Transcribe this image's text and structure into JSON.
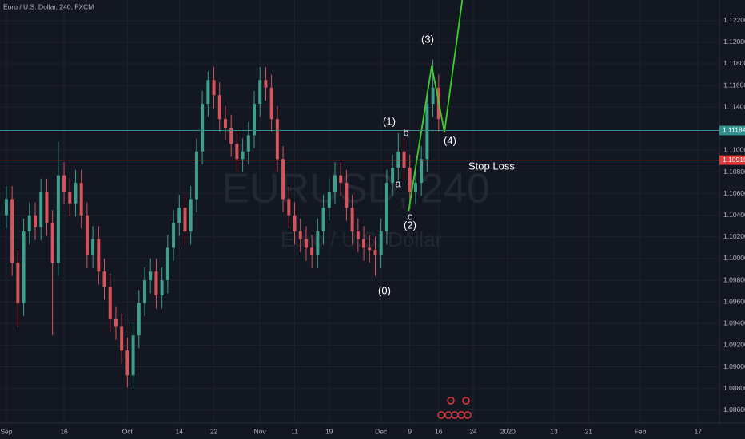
{
  "chart_data": {
    "type": "candlestick",
    "title": "Euro / U.S. Dollar, 240, FXCM",
    "watermark": "EURUSD, 240",
    "watermark_subtitle": "Euro / U.S. Dollar",
    "up_color": "#3e9f8c",
    "down_color": "#d8545c",
    "grid": true,
    "xlim": [
      -1.1,
      123.7
    ],
    "ylim": [
      1.0848,
      1.1239
    ],
    "xticks": [
      {
        "value": 0,
        "label": "Sep"
      },
      {
        "value": 10,
        "label": "16"
      },
      {
        "value": 21,
        "label": "Oct"
      },
      {
        "value": 30,
        "label": "14"
      },
      {
        "value": 36,
        "label": "22"
      },
      {
        "value": 44,
        "label": "Nov"
      },
      {
        "value": 50,
        "label": "11"
      },
      {
        "value": 56,
        "label": "19"
      },
      {
        "value": 65,
        "label": "Dec"
      },
      {
        "value": 70,
        "label": "9"
      },
      {
        "value": 75,
        "label": "16"
      },
      {
        "value": 81,
        "label": "24"
      },
      {
        "value": 87,
        "label": "2020"
      },
      {
        "value": 95,
        "label": "13"
      },
      {
        "value": 101,
        "label": "21"
      },
      {
        "value": 110,
        "label": "Feb"
      },
      {
        "value": 120,
        "label": "17"
      }
    ],
    "yticks": [
      {
        "value": 1.086,
        "label": "1.08600"
      },
      {
        "value": 1.088,
        "label": "1.08800"
      },
      {
        "value": 1.09,
        "label": "1.09000"
      },
      {
        "value": 1.092,
        "label": "1.09200"
      },
      {
        "value": 1.094,
        "label": "1.09400"
      },
      {
        "value": 1.096,
        "label": "1.09600"
      },
      {
        "value": 1.098,
        "label": "1.09800"
      },
      {
        "value": 1.1,
        "label": "1.10000"
      },
      {
        "value": 1.102,
        "label": "1.10200"
      },
      {
        "value": 1.104,
        "label": "1.10400"
      },
      {
        "value": 1.106,
        "label": "1.10600"
      },
      {
        "value": 1.108,
        "label": "1.10800"
      },
      {
        "value": 1.11,
        "label": "1.11000"
      },
      {
        "value": 1.114,
        "label": "1.11400"
      },
      {
        "value": 1.116,
        "label": "1.11600"
      },
      {
        "value": 1.118,
        "label": "1.11800"
      },
      {
        "value": 1.12,
        "label": "1.12000"
      },
      {
        "value": 1.122,
        "label": "1.12200"
      }
    ],
    "x": [
      0,
      1,
      2,
      3,
      4,
      5,
      6,
      7,
      8,
      9,
      10,
      11,
      12,
      13,
      14,
      15,
      16,
      17,
      18,
      19,
      20,
      21,
      22,
      23,
      24,
      25,
      26,
      27,
      28,
      29,
      30,
      31,
      32,
      33,
      34,
      35,
      36,
      37,
      38,
      39,
      40,
      41,
      42,
      43,
      44,
      45,
      46,
      47,
      48,
      49,
      50,
      51,
      52,
      53,
      54,
      55,
      56,
      57,
      58,
      59,
      60,
      61,
      62,
      63,
      64,
      65,
      66,
      67,
      68,
      69,
      70,
      71,
      72,
      73,
      74,
      75
    ],
    "open": [
      1.104,
      1.1055,
      1.0996,
      1.0959,
      1.1025,
      1.104,
      1.1029,
      1.1062,
      1.1033,
      1.0996,
      1.1077,
      1.1062,
      1.1051,
      1.107,
      1.104,
      1.1003,
      1.1018,
      1.0988,
      1.0974,
      1.0944,
      1.0937,
      1.0915,
      1.0892,
      1.0929,
      1.0959,
      1.098,
      1.0988,
      1.0966,
      1.098,
      1.101,
      1.1033,
      1.1047,
      1.1025,
      1.1055,
      1.1099,
      1.1143,
      1.1165,
      1.1151,
      1.1129,
      1.1121,
      1.1106,
      1.1092,
      1.1099,
      1.1114,
      1.1143,
      1.1165,
      1.1158,
      1.1129,
      1.1092,
      1.1055,
      1.104,
      1.1025,
      1.1018,
      1.101,
      1.1003,
      1.1025,
      1.1047,
      1.1062,
      1.1077,
      1.107,
      1.1047,
      1.1025,
      1.1018,
      1.101,
      1.1008,
      1.1003,
      1.1025,
      1.107,
      1.1084,
      1.1099,
      1.1084,
      1.1062,
      1.107,
      1.1092,
      1.1143,
      1.1158
    ],
    "high": [
      1.1067,
      1.1067,
      1.1008,
      1.1037,
      1.1052,
      1.1052,
      1.1074,
      1.1074,
      1.1045,
      1.1108,
      1.1089,
      1.1074,
      1.1082,
      1.1082,
      1.1052,
      1.103,
      1.103,
      1.1,
      1.0986,
      1.0956,
      1.0949,
      1.0927,
      1.0941,
      1.0971,
      1.0992,
      1.1,
      1.1,
      1.0992,
      1.1022,
      1.1045,
      1.1059,
      1.1059,
      1.1067,
      1.1111,
      1.1155,
      1.1173,
      1.1177,
      1.1163,
      1.1141,
      1.1133,
      1.1118,
      1.1111,
      1.1126,
      1.1155,
      1.1177,
      1.1177,
      1.117,
      1.1141,
      1.1104,
      1.1067,
      1.1052,
      1.1037,
      1.103,
      1.1022,
      1.1037,
      1.1059,
      1.1074,
      1.1089,
      1.1089,
      1.1082,
      1.1059,
      1.1037,
      1.103,
      1.1022,
      1.102,
      1.1037,
      1.1082,
      1.1096,
      1.1116,
      1.1111,
      1.1096,
      1.1082,
      1.1104,
      1.1155,
      1.1184,
      1.117
    ],
    "low": [
      1.1028,
      1.0984,
      1.0937,
      1.0947,
      1.1013,
      1.1017,
      1.1017,
      1.1021,
      1.0929,
      1.0984,
      1.105,
      1.1039,
      1.1039,
      1.1028,
      1.0991,
      1.0991,
      1.0976,
      1.0962,
      1.0932,
      1.0925,
      1.0903,
      1.0881,
      1.088,
      1.0917,
      1.0947,
      1.0968,
      1.0954,
      1.0954,
      1.0968,
      1.0998,
      1.1021,
      1.1013,
      1.1013,
      1.1043,
      1.1087,
      1.1131,
      1.1139,
      1.1117,
      1.1109,
      1.1094,
      1.108,
      1.108,
      1.1087,
      1.1102,
      1.1131,
      1.1146,
      1.1117,
      1.108,
      1.1043,
      1.1028,
      1.1013,
      1.1006,
      1.0998,
      1.0991,
      1.0991,
      1.1013,
      1.1035,
      1.105,
      1.1058,
      1.1035,
      1.1013,
      1.1006,
      1.0998,
      1.0996,
      1.0984,
      1.0991,
      1.1013,
      1.1058,
      1.1072,
      1.1072,
      1.1046,
      1.105,
      1.1058,
      1.108,
      1.1131,
      1.1117
    ],
    "close": [
      1.1055,
      1.0996,
      1.0959,
      1.1025,
      1.104,
      1.1029,
      1.1062,
      1.1033,
      1.0996,
      1.1077,
      1.1062,
      1.1051,
      1.107,
      1.104,
      1.1003,
      1.1018,
      1.0988,
      1.0974,
      1.0944,
      1.0937,
      1.0915,
      1.0892,
      1.0929,
      1.0959,
      1.098,
      1.0988,
      1.0966,
      1.098,
      1.101,
      1.1033,
      1.1047,
      1.1025,
      1.1055,
      1.1099,
      1.1143,
      1.1165,
      1.1151,
      1.1129,
      1.1121,
      1.1106,
      1.1092,
      1.1099,
      1.1114,
      1.1143,
      1.1165,
      1.1158,
      1.1129,
      1.1092,
      1.1055,
      1.104,
      1.1025,
      1.1018,
      1.101,
      1.1003,
      1.1025,
      1.1047,
      1.1062,
      1.1077,
      1.107,
      1.1047,
      1.1025,
      1.1018,
      1.101,
      1.1008,
      1.1003,
      1.1025,
      1.107,
      1.1084,
      1.1099,
      1.1084,
      1.1062,
      1.107,
      1.1092,
      1.1143,
      1.1158,
      1.1129
    ],
    "hlines": [
      {
        "value": 1.11184,
        "label": "1.11184",
        "color": "#2f8f8c"
      },
      {
        "value": 1.1091,
        "label": "1.10910",
        "color": "#e03b3b"
      }
    ],
    "projection": {
      "color": "#3ad22a",
      "x": [
        69.8,
        73.8,
        76.0,
        79.1
      ],
      "values": [
        1.1044,
        1.1178,
        1.1117,
        1.12392
      ]
    },
    "annotations": [
      "(0)",
      "(1)",
      "b",
      "a",
      "c",
      "(2)",
      "(3)",
      "(4)",
      "Stop Loss"
    ]
  }
}
